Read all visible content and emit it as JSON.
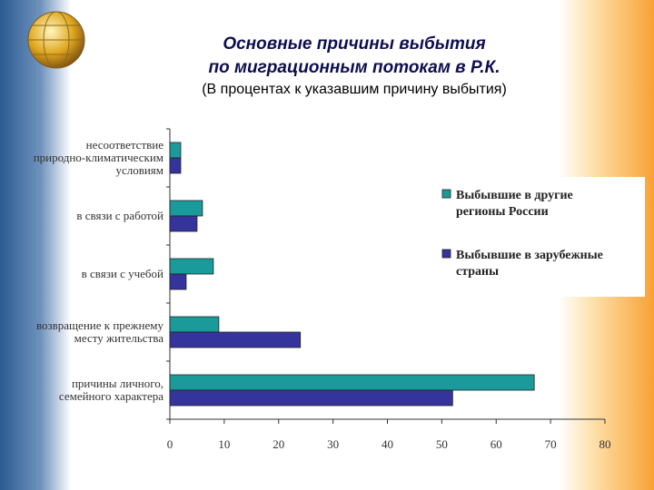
{
  "chart_data": {
    "type": "barh",
    "title": "Основные причины выбытия\nпо миграционным потокам в Р.К.",
    "subtitle": "(В процентах к указавшим причину выбытия)",
    "categories": [
      "несоответствие\nприродно-климатическим\nусловиям",
      "в связи с работой",
      "в связи с учебой",
      "возвращение к прежнему\nместу жительства",
      "причины личного,\nсемейного характера"
    ],
    "series": [
      {
        "name": "Выбывшие в другие\nрегионы России",
        "color": "#1a9a9a",
        "values": [
          2,
          6,
          8,
          9,
          67
        ]
      },
      {
        "name": "Выбывшие в зарубежные\nстраны",
        "color": "#35349c",
        "values": [
          2,
          5,
          3,
          24,
          52
        ]
      }
    ],
    "xlim": [
      0,
      80
    ],
    "xticks": [
      0,
      10,
      20,
      30,
      40,
      50,
      60,
      70,
      80
    ],
    "grid": false,
    "legend": "right"
  }
}
